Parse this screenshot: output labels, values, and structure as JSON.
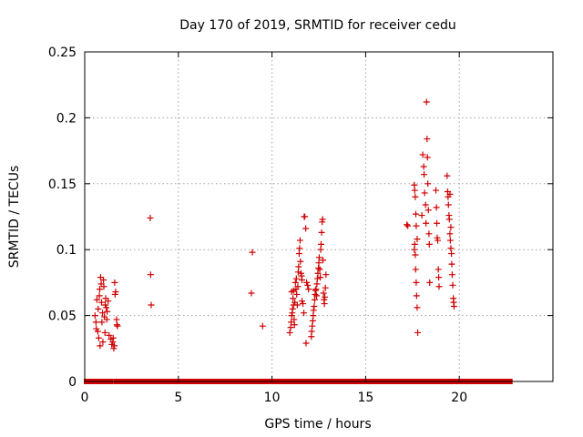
{
  "chart_data": {
    "type": "scatter",
    "title": "Day 170 of 2019, SRMTID for receiver cedu",
    "xlabel": "GPS time / hours",
    "ylabel": "SRMTID / TECUs",
    "xlim": [
      0,
      25
    ],
    "ylim": [
      0,
      0.25
    ],
    "xticks": [
      "0",
      "5",
      "10",
      "15",
      "20"
    ],
    "yticks": [
      "0",
      "0.05",
      "0.1",
      "0.15",
      "0.2",
      "0.25"
    ],
    "grid": true,
    "marker": "plus",
    "color": "#d00000",
    "zero_segments": [
      [
        0.1,
        1.4
      ],
      [
        1.7,
        22.7
      ]
    ],
    "series": [
      {
        "name": "SRMTID",
        "points": [
          [
            0.55,
            0.05
          ],
          [
            0.6,
            0.045
          ],
          [
            0.62,
            0.04
          ],
          [
            0.65,
            0.062
          ],
          [
            0.7,
            0.038
          ],
          [
            0.72,
            0.055
          ],
          [
            0.75,
            0.033
          ],
          [
            0.78,
            0.065
          ],
          [
            0.8,
            0.07
          ],
          [
            0.82,
            0.027
          ],
          [
            0.85,
            0.079
          ],
          [
            0.88,
            0.074
          ],
          [
            0.9,
            0.06
          ],
          [
            0.92,
            0.045
          ],
          [
            0.95,
            0.052
          ],
          [
            0.97,
            0.03
          ],
          [
            1.0,
            0.077
          ],
          [
            1.02,
            0.072
          ],
          [
            1.05,
            0.049
          ],
          [
            1.08,
            0.037
          ],
          [
            1.1,
            0.058
          ],
          [
            1.12,
            0.063
          ],
          [
            1.15,
            0.056
          ],
          [
            1.18,
            0.047
          ],
          [
            1.2,
            0.053
          ],
          [
            1.25,
            0.061
          ],
          [
            1.3,
            0.035
          ],
          [
            1.4,
            0.032
          ],
          [
            1.45,
            0.028
          ],
          [
            1.5,
            0.03
          ],
          [
            1.52,
            0.033
          ],
          [
            1.55,
            0.025
          ],
          [
            1.58,
            0.027
          ],
          [
            1.6,
            0.075
          ],
          [
            1.62,
            0.066
          ],
          [
            1.65,
            0.068
          ],
          [
            1.7,
            0.047
          ],
          [
            1.72,
            0.043
          ],
          [
            1.75,
            0.042
          ],
          [
            3.5,
            0.124
          ],
          [
            3.52,
            0.081
          ],
          [
            3.55,
            0.058
          ],
          [
            8.9,
            0.067
          ],
          [
            8.95,
            0.098
          ],
          [
            9.5,
            0.042
          ],
          [
            10.95,
            0.037
          ],
          [
            11.0,
            0.041
          ],
          [
            11.02,
            0.045
          ],
          [
            11.05,
            0.05
          ],
          [
            11.05,
            0.068
          ],
          [
            11.08,
            0.052
          ],
          [
            11.1,
            0.055
          ],
          [
            11.12,
            0.063
          ],
          [
            11.15,
            0.058
          ],
          [
            11.15,
            0.069
          ],
          [
            11.18,
            0.047
          ],
          [
            11.2,
            0.043
          ],
          [
            11.22,
            0.06
          ],
          [
            11.25,
            0.075
          ],
          [
            11.28,
            0.07
          ],
          [
            11.3,
            0.078
          ],
          [
            11.32,
            0.066
          ],
          [
            11.35,
            0.058
          ],
          [
            11.38,
            0.072
          ],
          [
            11.4,
            0.083
          ],
          [
            11.42,
            0.087
          ],
          [
            11.45,
            0.097
          ],
          [
            11.47,
            0.101
          ],
          [
            11.5,
            0.107
          ],
          [
            11.52,
            0.091
          ],
          [
            11.55,
            0.082
          ],
          [
            11.58,
            0.08
          ],
          [
            11.6,
            0.077
          ],
          [
            11.6,
            0.061
          ],
          [
            11.65,
            0.059
          ],
          [
            11.7,
            0.052
          ],
          [
            11.72,
            0.125
          ],
          [
            11.75,
            0.125
          ],
          [
            11.8,
            0.116
          ],
          [
            11.82,
            0.029
          ],
          [
            11.85,
            0.075
          ],
          [
            11.9,
            0.073
          ],
          [
            11.95,
            0.07
          ],
          [
            12.1,
            0.034
          ],
          [
            12.12,
            0.038
          ],
          [
            12.15,
            0.042
          ],
          [
            12.18,
            0.046
          ],
          [
            12.2,
            0.05
          ],
          [
            12.22,
            0.054
          ],
          [
            12.25,
            0.057
          ],
          [
            12.28,
            0.062
          ],
          [
            12.3,
            0.066
          ],
          [
            12.32,
            0.069
          ],
          [
            12.35,
            0.07
          ],
          [
            12.38,
            0.065
          ],
          [
            12.4,
            0.074
          ],
          [
            12.42,
            0.078
          ],
          [
            12.45,
            0.082
          ],
          [
            12.48,
            0.086
          ],
          [
            12.5,
            0.09
          ],
          [
            12.52,
            0.094
          ],
          [
            12.55,
            0.085
          ],
          [
            12.58,
            0.079
          ],
          [
            12.6,
            0.1
          ],
          [
            12.62,
            0.104
          ],
          [
            12.65,
            0.113
          ],
          [
            12.68,
            0.121
          ],
          [
            12.7,
            0.123
          ],
          [
            12.72,
            0.092
          ],
          [
            12.75,
            0.067
          ],
          [
            12.78,
            0.062
          ],
          [
            12.8,
            0.059
          ],
          [
            12.82,
            0.064
          ],
          [
            12.85,
            0.071
          ],
          [
            12.88,
            0.081
          ],
          [
            17.2,
            0.119
          ],
          [
            17.25,
            0.118
          ],
          [
            17.6,
            0.1
          ],
          [
            17.62,
            0.104
          ],
          [
            17.65,
            0.096
          ],
          [
            17.67,
            0.085
          ],
          [
            17.7,
            0.075
          ],
          [
            17.72,
            0.065
          ],
          [
            17.75,
            0.056
          ],
          [
            17.78,
            0.037
          ],
          [
            17.6,
            0.149
          ],
          [
            17.62,
            0.145
          ],
          [
            17.65,
            0.14
          ],
          [
            17.68,
            0.127
          ],
          [
            17.7,
            0.118
          ],
          [
            17.75,
            0.108
          ],
          [
            18.0,
            0.126
          ],
          [
            18.05,
            0.172
          ],
          [
            18.1,
            0.163
          ],
          [
            18.12,
            0.157
          ],
          [
            18.15,
            0.143
          ],
          [
            18.2,
            0.134
          ],
          [
            18.22,
            0.12
          ],
          [
            18.25,
            0.212
          ],
          [
            18.28,
            0.184
          ],
          [
            18.3,
            0.17
          ],
          [
            18.32,
            0.15
          ],
          [
            18.35,
            0.13
          ],
          [
            18.38,
            0.112
          ],
          [
            18.4,
            0.104
          ],
          [
            18.42,
            0.075
          ],
          [
            18.75,
            0.145
          ],
          [
            18.78,
            0.132
          ],
          [
            18.8,
            0.12
          ],
          [
            18.82,
            0.109
          ],
          [
            18.85,
            0.107
          ],
          [
            18.88,
            0.085
          ],
          [
            18.9,
            0.079
          ],
          [
            18.92,
            0.072
          ],
          [
            19.35,
            0.156
          ],
          [
            19.38,
            0.144
          ],
          [
            19.4,
            0.14
          ],
          [
            19.42,
            0.134
          ],
          [
            19.45,
            0.126
          ],
          [
            19.47,
            0.123
          ],
          [
            19.5,
            0.112
          ],
          [
            19.52,
            0.107
          ],
          [
            19.55,
            0.101
          ],
          [
            19.58,
            0.097
          ],
          [
            19.6,
            0.089
          ],
          [
            19.62,
            0.081
          ],
          [
            19.65,
            0.073
          ],
          [
            19.68,
            0.063
          ],
          [
            19.7,
            0.06
          ],
          [
            19.72,
            0.057
          ],
          [
            19.5,
            0.142
          ],
          [
            19.55,
            0.117
          ]
        ]
      }
    ]
  }
}
